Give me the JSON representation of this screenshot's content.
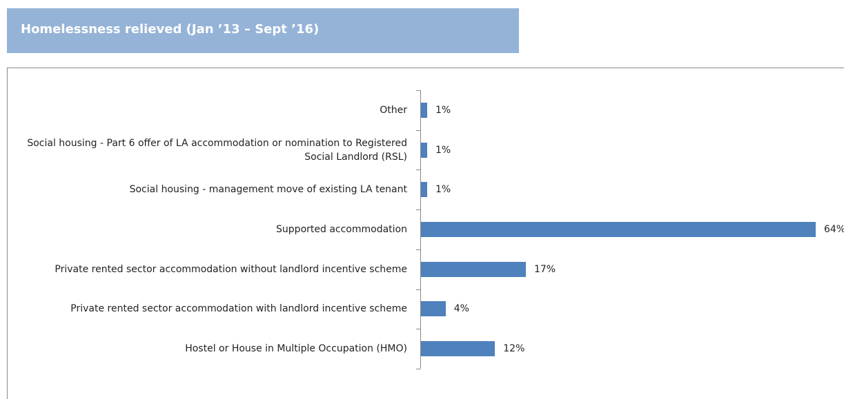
{
  "chart_data": {
    "type": "bar",
    "orientation": "horizontal",
    "title": "Homelessness relieved (Jan ’13 – Sept ’16)",
    "categories": [
      "Other",
      "Social housing - Part 6 offer of LA accommodation or nomination to Registered Social Landlord (RSL)",
      "Social housing - management move of existing LA tenant",
      "Supported accommodation",
      "Private rented sector accommodation without landlord incentive scheme",
      "Private rented sector accommodation with landlord incentive scheme",
      "Hostel or House in Multiple Occupation (HMO)"
    ],
    "values": [
      1,
      1,
      1,
      64,
      17,
      4,
      12
    ],
    "value_labels": [
      "1%",
      "1%",
      "1%",
      "64%",
      "17%",
      "4%",
      "12%"
    ],
    "color": "#4f81bd"
  }
}
